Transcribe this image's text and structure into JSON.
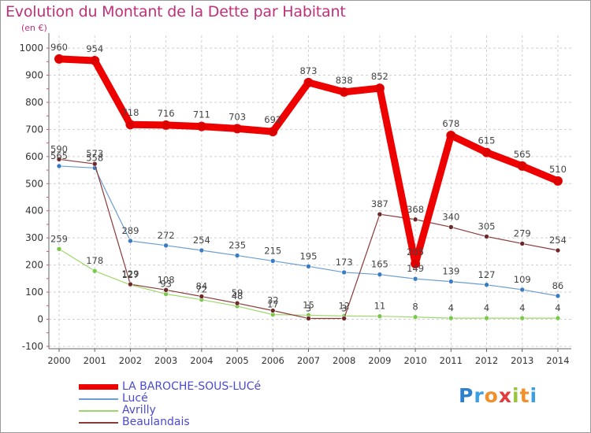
{
  "title": "Evolution du Montant de la Dette par Habitant",
  "subtitle": "(en €)",
  "logo": {
    "letters": [
      "P",
      "r",
      "o",
      "x",
      "i",
      "t",
      "i"
    ],
    "colors": [
      "#2d7fd0",
      "#3aa0e0",
      "#f0902a",
      "#e23b3b",
      "#9ac43a",
      "#f0902a",
      "#3aa0e0"
    ]
  },
  "chart_data": {
    "type": "line",
    "title": "Evolution du Montant de la Dette par Habitant",
    "ylabel": "(en €)",
    "xlabel": "",
    "ylim": [
      -100,
      1000
    ],
    "yticks": [
      -100,
      0,
      100,
      200,
      300,
      400,
      500,
      600,
      700,
      800,
      900,
      1000
    ],
    "x": [
      "2000",
      "2001",
      "2002",
      "2003",
      "2004",
      "2005",
      "2006",
      "2007",
      "2008",
      "2009",
      "2010",
      "2011",
      "2012",
      "2013",
      "2014"
    ],
    "series": [
      {
        "name": "LA BAROCHE-SOUS-LUCé",
        "color": "#ee0000",
        "marker": "#dd0000",
        "width": 9,
        "values": [
          960,
          954,
          718,
          716,
          711,
          703,
          692,
          873,
          838,
          852,
          205,
          678,
          615,
          565,
          510
        ],
        "labels": [
          "960",
          "954",
          "718",
          "716",
          "711",
          "703",
          "692",
          "873",
          "838",
          "852",
          "205",
          "678",
          "615",
          "565",
          "510"
        ]
      },
      {
        "name": "Lucé",
        "color": "#6a9ed0",
        "marker": "#3a7cc4",
        "width": 1.2,
        "values": [
          565,
          558,
          289,
          272,
          254,
          235,
          215,
          195,
          173,
          165,
          149,
          139,
          127,
          109,
          86
        ],
        "labels": [
          "565",
          "558",
          "289",
          "272",
          "254",
          "235",
          "215",
          "195",
          "173",
          "165",
          "149",
          "139",
          "127",
          "109",
          "86"
        ]
      },
      {
        "name": "Avrilly",
        "color": "#9ed86a",
        "marker": "#7ac84a",
        "width": 1.2,
        "values": [
          259,
          178,
          127,
          93,
          72,
          48,
          17,
          15,
          12,
          11,
          8,
          4,
          4,
          4,
          4
        ],
        "labels": [
          "259",
          "178",
          "127",
          "93",
          "72",
          "48",
          "17",
          "15",
          "12",
          "11",
          "8",
          "4",
          "4",
          "4",
          "4"
        ]
      },
      {
        "name": "Beaulandais",
        "color": "#8b3a3a",
        "marker": "#6e2828",
        "width": 1.2,
        "values": [
          590,
          573,
          129,
          108,
          84,
          59,
          32,
          3,
          3,
          387,
          368,
          340,
          305,
          279,
          254
        ],
        "labels": [
          "590",
          "573",
          "129",
          "108",
          "84",
          "59",
          "32",
          "3",
          "3",
          "387",
          "368",
          "340",
          "305",
          "279",
          "254"
        ]
      }
    ],
    "legend_position": "bottom-left",
    "grid": true
  }
}
